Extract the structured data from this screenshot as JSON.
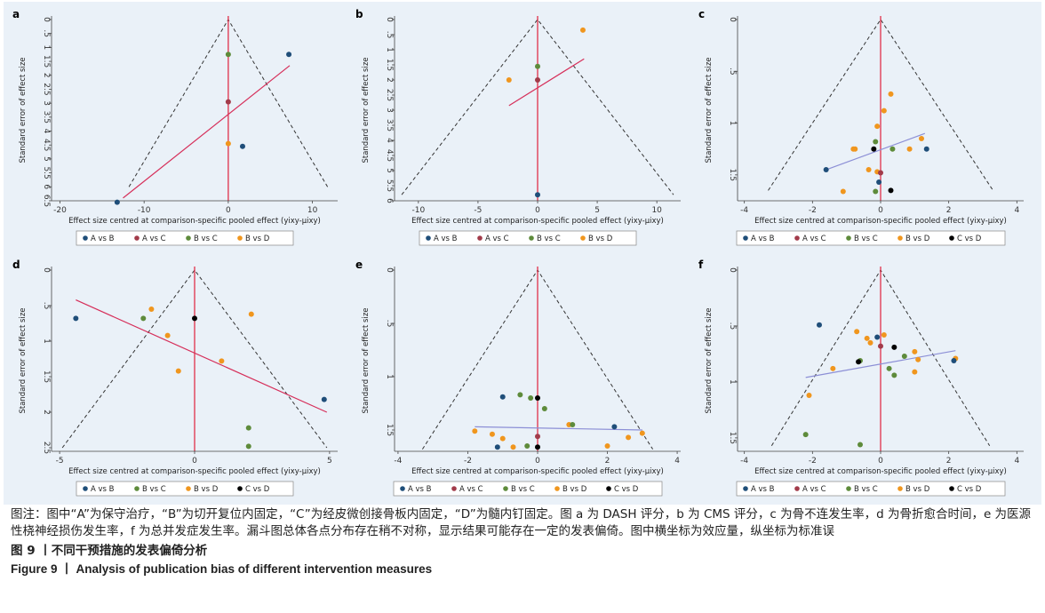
{
  "figure": {
    "caption_note": "图注：图中“A”为保守治疗，“B”为切开复位内固定，“C”为经皮微创接骨板内固定，“D”为髓内钉固定。图 a 为 DASH 评分，b 为 CMS 评分，c 为骨不连发生率，d 为骨折愈合时间，e 为医源性桡神经损伤发生率，f 为总并发症发生率。漏斗图总体各点分布存在稍不对称，显示结果可能存在一定的发表偏倚。图中横坐标为效应量，纵坐标为标准误",
    "caption_cn": "图 9 丨不同干预措施的发表偏倚分析",
    "caption_en": "Figure 9 丨 Analysis of publication bias of different intervention measures"
  },
  "colors": {
    "A vs B": "#1f4e79",
    "A vs C": "#a23b4a",
    "B vs C": "#5e8b3b",
    "B vs D": "#f0961e",
    "C vs D": "#000000",
    "center_line": "#e0304a",
    "fit_line_red": "#d62f5a",
    "fit_line_blue": "#8c8fd6",
    "funnel": "#333333"
  },
  "chart_data": [
    {
      "type": "scatter",
      "panel": "a",
      "xlabel": "Effect size centred at comparison-specific pooled effect (yixy-μixy)",
      "ylabel": "Standard error of effect size",
      "xlim": [
        -21,
        13
      ],
      "ylim": [
        0,
        6.5
      ],
      "xticks": [
        "-20",
        "-10",
        "0",
        "10"
      ],
      "xtick_values": [
        -20,
        -10,
        0,
        10
      ],
      "yticks": [
        "0",
        ".5",
        "1",
        "1.5",
        "2",
        "2.5",
        "3",
        "3.5",
        "4",
        "4.5",
        "5",
        "5.5",
        "6",
        "6.5"
      ],
      "ytick_values": [
        0,
        0.5,
        1,
        1.5,
        2,
        2.5,
        3,
        3.5,
        4,
        4.5,
        5,
        5.5,
        6,
        6.5
      ],
      "funnel_se_max": 6,
      "funnel_half_width": 11.8,
      "fit_line": {
        "color": "fit_line_red",
        "x1": -12.5,
        "y1": 6.4,
        "x2": 7.3,
        "y2": 1.65
      },
      "legend": [
        "A vs B",
        "A vs C",
        "B vs C",
        "B vs D"
      ],
      "points": [
        {
          "x": 7.2,
          "y": 1.25,
          "series": "A vs B"
        },
        {
          "x": 0,
          "y": 1.25,
          "series": "B vs C"
        },
        {
          "x": 0,
          "y": 2.95,
          "series": "A vs C"
        },
        {
          "x": 0,
          "y": 4.45,
          "series": "B vs D"
        },
        {
          "x": 1.7,
          "y": 4.55,
          "series": "A vs B"
        },
        {
          "x": -13.2,
          "y": 6.55,
          "series": "A vs B"
        }
      ]
    },
    {
      "type": "scatter",
      "panel": "b",
      "xlabel": "Effect size centred at comparison-specific pooled effect (yixy-μixy)",
      "ylabel": "Standard error of effect size",
      "xlim": [
        -12,
        12
      ],
      "ylim": [
        0,
        6
      ],
      "xticks": [
        "-10",
        "-5",
        "0",
        "5",
        "10"
      ],
      "xtick_values": [
        -10,
        -5,
        0,
        5,
        10
      ],
      "yticks": [
        "0",
        ".5",
        "1",
        "1.5",
        "2",
        "2.5",
        "3",
        "3.5",
        "4",
        "4.5",
        "5",
        "5.5",
        "6"
      ],
      "ytick_values": [
        0,
        0.5,
        1,
        1.5,
        2,
        2.5,
        3,
        3.5,
        4,
        4.5,
        5,
        5.5,
        6
      ],
      "funnel_se_max": 5.8,
      "funnel_half_width": 11.4,
      "fit_line": {
        "color": "fit_line_red",
        "x1": -2.4,
        "y1": 2.85,
        "x2": 3.9,
        "y2": 1.3
      },
      "legend": [
        "A vs B",
        "A vs C",
        "B vs C",
        "B vs D"
      ],
      "points": [
        {
          "x": 3.8,
          "y": 0.35,
          "series": "B vs D"
        },
        {
          "x": 0,
          "y": 1.55,
          "series": "B vs C"
        },
        {
          "x": -2.4,
          "y": 2.0,
          "series": "B vs D"
        },
        {
          "x": 0,
          "y": 2.0,
          "series": "A vs C"
        },
        {
          "x": 0,
          "y": 5.8,
          "series": "A vs B"
        }
      ]
    },
    {
      "type": "scatter",
      "panel": "c",
      "xlabel": "Effect size centred at comparison-specific pooled effect (yixy-μixy)",
      "ylabel": "Standard error of effect size",
      "xlim": [
        -4.2,
        4.2
      ],
      "ylim": [
        0,
        1.75
      ],
      "xticks": [
        "-4",
        "-2",
        "0",
        "2",
        "4"
      ],
      "xtick_values": [
        -4,
        -2,
        0,
        2,
        4
      ],
      "yticks": [
        "0",
        ".5",
        "1",
        "1.5"
      ],
      "ytick_values": [
        0,
        0.5,
        1,
        1.5
      ],
      "funnel_se_max": 1.65,
      "funnel_half_width": 3.3,
      "fit_line": {
        "color": "fit_line_blue",
        "x1": -1.6,
        "y1": 1.45,
        "x2": 1.3,
        "y2": 1.1
      },
      "legend": [
        "A vs B",
        "A vs C",
        "B vs C",
        "B vs D",
        "C vs D"
      ],
      "points": [
        {
          "x": 0.3,
          "y": 0.72,
          "series": "B vs D"
        },
        {
          "x": 0.1,
          "y": 0.88,
          "series": "B vs D"
        },
        {
          "x": -0.1,
          "y": 1.03,
          "series": "B vs D"
        },
        {
          "x": 1.2,
          "y": 1.15,
          "series": "B vs D"
        },
        {
          "x": -0.15,
          "y": 1.18,
          "series": "B vs C"
        },
        {
          "x": -0.8,
          "y": 1.25,
          "series": "B vs D"
        },
        {
          "x": -0.75,
          "y": 1.25,
          "series": "B vs D"
        },
        {
          "x": -0.2,
          "y": 1.25,
          "series": "C vs D"
        },
        {
          "x": 0.35,
          "y": 1.25,
          "series": "B vs C"
        },
        {
          "x": 0.85,
          "y": 1.25,
          "series": "B vs D"
        },
        {
          "x": 1.35,
          "y": 1.25,
          "series": "A vs B"
        },
        {
          "x": -1.6,
          "y": 1.45,
          "series": "A vs B"
        },
        {
          "x": -0.35,
          "y": 1.45,
          "series": "B vs D"
        },
        {
          "x": -0.1,
          "y": 1.47,
          "series": "B vs D"
        },
        {
          "x": 0,
          "y": 1.48,
          "series": "A vs C"
        },
        {
          "x": -0.05,
          "y": 1.57,
          "series": "A vs B"
        },
        {
          "x": -1.1,
          "y": 1.66,
          "series": "B vs D"
        },
        {
          "x": -0.15,
          "y": 1.66,
          "series": "B vs C"
        },
        {
          "x": 0.3,
          "y": 1.65,
          "series": "C vs D"
        }
      ]
    },
    {
      "type": "scatter",
      "panel": "d",
      "xlabel": "Effect size centred at comparison-specific pooled effect (yixy-μixy)",
      "ylabel": "Standard error of effect size",
      "xlim": [
        -5.3,
        5.3
      ],
      "ylim": [
        0,
        2.55
      ],
      "xticks": [
        "-5",
        "0",
        "5"
      ],
      "xtick_values": [
        -5,
        0,
        5
      ],
      "yticks": [
        "0",
        ".5",
        "1",
        "1.5",
        "2",
        "2.5"
      ],
      "ytick_values": [
        0,
        0.5,
        1,
        1.5,
        2,
        2.5
      ],
      "funnel_se_max": 2.5,
      "funnel_half_width": 4.9,
      "fit_line": {
        "color": "fit_line_red",
        "x1": -4.4,
        "y1": 0.42,
        "x2": 4.9,
        "y2": 2.0
      },
      "legend": [
        "A vs B",
        "B vs C",
        "B vs D",
        "C vs D"
      ],
      "points": [
        {
          "x": -4.4,
          "y": 0.68,
          "series": "A vs B"
        },
        {
          "x": -1.9,
          "y": 0.68,
          "series": "B vs C"
        },
        {
          "x": -1.6,
          "y": 0.55,
          "series": "B vs D"
        },
        {
          "x": 0,
          "y": 0.68,
          "series": "C vs D"
        },
        {
          "x": 2.1,
          "y": 0.62,
          "series": "B vs D"
        },
        {
          "x": -1.0,
          "y": 0.92,
          "series": "B vs D"
        },
        {
          "x": 1.0,
          "y": 1.28,
          "series": "B vs D"
        },
        {
          "x": -0.6,
          "y": 1.42,
          "series": "B vs D"
        },
        {
          "x": 4.8,
          "y": 1.82,
          "series": "A vs B"
        },
        {
          "x": 2.0,
          "y": 2.22,
          "series": "B vs C"
        },
        {
          "x": 2.0,
          "y": 2.48,
          "series": "B vs C"
        }
      ]
    },
    {
      "type": "scatter",
      "panel": "e",
      "xlabel": "Effect size centred at comparison-specific pooled effect (yixy-μixy)",
      "ylabel": "Standard error of effect size",
      "xlim": [
        -4.1,
        4.1
      ],
      "ylim": [
        0,
        1.7
      ],
      "xticks": [
        "-4",
        "-2",
        "0",
        "2",
        "4"
      ],
      "xtick_values": [
        -4,
        -2,
        0,
        2,
        4
      ],
      "yticks": [
        "0",
        ".5",
        "1",
        "1.5"
      ],
      "ytick_values": [
        0,
        0.5,
        1,
        1.5
      ],
      "funnel_se_max": 1.68,
      "funnel_half_width": 3.3,
      "fit_line": {
        "color": "fit_line_blue",
        "x1": -1.8,
        "y1": 1.47,
        "x2": 3.0,
        "y2": 1.5
      },
      "legend": [
        "A vs B",
        "A vs C",
        "B vs C",
        "B vs D",
        "C vs D"
      ],
      "points": [
        {
          "x": -0.5,
          "y": 1.17,
          "series": "B vs C"
        },
        {
          "x": -1.0,
          "y": 1.19,
          "series": "A vs B"
        },
        {
          "x": -0.2,
          "y": 1.2,
          "series": "B vs C"
        },
        {
          "x": 0,
          "y": 1.2,
          "series": "C vs D"
        },
        {
          "x": 0.2,
          "y": 1.3,
          "series": "B vs C"
        },
        {
          "x": 0.9,
          "y": 1.45,
          "series": "B vs D"
        },
        {
          "x": 1.0,
          "y": 1.45,
          "series": "B vs C"
        },
        {
          "x": 2.2,
          "y": 1.47,
          "series": "A vs B"
        },
        {
          "x": -1.8,
          "y": 1.51,
          "series": "B vs D"
        },
        {
          "x": -1.3,
          "y": 1.54,
          "series": "B vs D"
        },
        {
          "x": -1.0,
          "y": 1.58,
          "series": "B vs D"
        },
        {
          "x": 0,
          "y": 1.56,
          "series": "A vs C"
        },
        {
          "x": 3.0,
          "y": 1.53,
          "series": "B vs D"
        },
        {
          "x": 2.6,
          "y": 1.57,
          "series": "B vs D"
        },
        {
          "x": -1.15,
          "y": 1.66,
          "series": "A vs B"
        },
        {
          "x": -0.7,
          "y": 1.66,
          "series": "B vs D"
        },
        {
          "x": -0.3,
          "y": 1.65,
          "series": "B vs C"
        },
        {
          "x": 0,
          "y": 1.66,
          "series": "C vs D"
        },
        {
          "x": 2.0,
          "y": 1.65,
          "series": "B vs D"
        }
      ]
    },
    {
      "type": "scatter",
      "panel": "f",
      "xlabel": "Effect size centred at comparison-specific pooled effect (yixy-μixy)",
      "ylabel": "Standard error of effect size",
      "xlim": [
        -4.2,
        4.2
      ],
      "ylim": [
        0,
        1.62
      ],
      "xticks": [
        "-4",
        "-2",
        "0",
        "2",
        "4"
      ],
      "xtick_values": [
        -4,
        -2,
        0,
        2,
        4
      ],
      "yticks": [
        "0",
        ".5",
        "1",
        "1.5"
      ],
      "ytick_values": [
        0,
        0.5,
        1,
        1.5
      ],
      "funnel_se_max": 1.57,
      "funnel_half_width": 3.2,
      "fit_line": {
        "color": "fit_line_blue",
        "x1": -2.2,
        "y1": 0.96,
        "x2": 2.2,
        "y2": 0.72
      },
      "legend": [
        "A vs B",
        "A vs C",
        "B vs C",
        "B vs D",
        "C vs D"
      ],
      "points": [
        {
          "x": -1.8,
          "y": 0.49,
          "series": "A vs B"
        },
        {
          "x": -0.7,
          "y": 0.55,
          "series": "B vs D"
        },
        {
          "x": -0.1,
          "y": 0.6,
          "series": "A vs B"
        },
        {
          "x": 0.1,
          "y": 0.58,
          "series": "B vs D"
        },
        {
          "x": -0.4,
          "y": 0.61,
          "series": "B vs D"
        },
        {
          "x": -0.3,
          "y": 0.65,
          "series": "B vs D"
        },
        {
          "x": 0,
          "y": 0.68,
          "series": "A vs C"
        },
        {
          "x": 0.4,
          "y": 0.69,
          "series": "C vs D"
        },
        {
          "x": 1.0,
          "y": 0.73,
          "series": "B vs D"
        },
        {
          "x": 0.7,
          "y": 0.77,
          "series": "B vs C"
        },
        {
          "x": 1.1,
          "y": 0.8,
          "series": "B vs D"
        },
        {
          "x": 2.2,
          "y": 0.79,
          "series": "B vs D"
        },
        {
          "x": 2.15,
          "y": 0.81,
          "series": "A vs B"
        },
        {
          "x": -0.6,
          "y": 0.81,
          "series": "B vs C"
        },
        {
          "x": -0.65,
          "y": 0.82,
          "series": "C vs D"
        },
        {
          "x": -1.4,
          "y": 0.88,
          "series": "B vs D"
        },
        {
          "x": 0.25,
          "y": 0.88,
          "series": "B vs C"
        },
        {
          "x": 1.0,
          "y": 0.91,
          "series": "B vs D"
        },
        {
          "x": 0.4,
          "y": 0.94,
          "series": "B vs C"
        },
        {
          "x": -2.1,
          "y": 1.12,
          "series": "B vs D"
        },
        {
          "x": -2.2,
          "y": 1.47,
          "series": "B vs C"
        },
        {
          "x": -0.6,
          "y": 1.56,
          "series": "B vs C"
        }
      ]
    }
  ]
}
